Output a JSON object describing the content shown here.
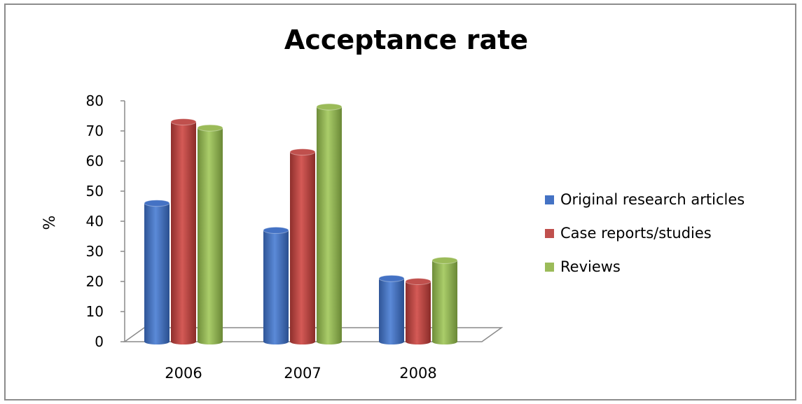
{
  "chart_data": {
    "type": "bar",
    "title": "Acceptance rate",
    "xlabel": "",
    "ylabel": "%",
    "categories": [
      "2006",
      "2007",
      "2008"
    ],
    "ylim": [
      0,
      80
    ],
    "yticks": [
      "0",
      "10",
      "20",
      "30",
      "40",
      "50",
      "60",
      "70",
      "80"
    ],
    "grid": false,
    "legend_position": "right",
    "series": [
      {
        "name": "Original research articles",
        "values": [
          46,
          37,
          21
        ],
        "color": "#4472C4"
      },
      {
        "name": "Case reports/studies",
        "values": [
          73,
          63,
          20
        ],
        "color": "#C0504D"
      },
      {
        "name": "Reviews",
        "values": [
          71,
          78,
          27
        ],
        "color": "#9BBB59"
      }
    ]
  }
}
